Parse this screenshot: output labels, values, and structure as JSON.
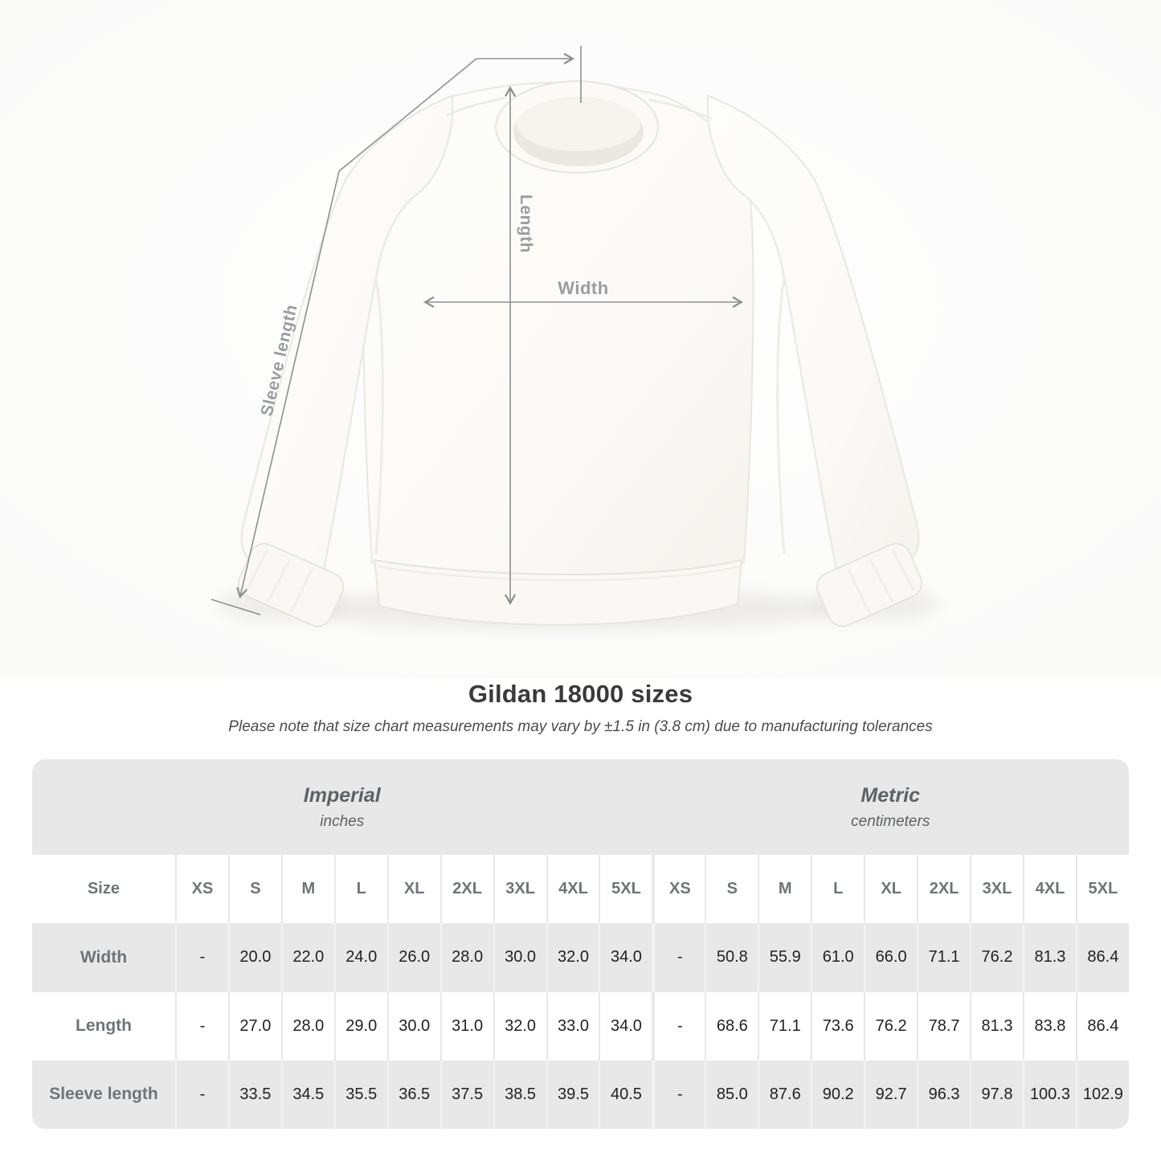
{
  "title": "Gildan 18000 sizes",
  "subtitle": "Please note that size chart measurements may vary by ±1.5 in (3.8 cm) due to manufacturing tolerances",
  "diagram": {
    "length_label": "Length",
    "width_label": "Width",
    "sleeve_label": "Sleeve length"
  },
  "colors": {
    "measure_line": "#8d9092",
    "measure_label": "#9a9da0",
    "table_band": "#e9e8e8",
    "header_text": "#6f7478",
    "value_text": "#222222",
    "title_text": "#3a3a3a"
  },
  "chart_data": {
    "type": "table",
    "title": "Gildan 18000 sizes",
    "note": "Please note that size chart measurements may vary by ±1.5 in (3.8 cm) due to manufacturing tolerances",
    "size_header": "Size",
    "sections": [
      {
        "name": "Imperial",
        "unit": "inches"
      },
      {
        "name": "Metric",
        "unit": "centimeters"
      }
    ],
    "sizes": [
      "XS",
      "S",
      "M",
      "L",
      "XL",
      "2XL",
      "3XL",
      "4XL",
      "5XL"
    ],
    "rows": [
      {
        "label": "Width",
        "imperial": [
          "-",
          "20.0",
          "22.0",
          "24.0",
          "26.0",
          "28.0",
          "30.0",
          "32.0",
          "34.0"
        ],
        "metric": [
          "-",
          "50.8",
          "55.9",
          "61.0",
          "66.0",
          "71.1",
          "76.2",
          "81.3",
          "86.4"
        ]
      },
      {
        "label": "Length",
        "imperial": [
          "-",
          "27.0",
          "28.0",
          "29.0",
          "30.0",
          "31.0",
          "32.0",
          "33.0",
          "34.0"
        ],
        "metric": [
          "-",
          "68.6",
          "71.1",
          "73.6",
          "76.2",
          "78.7",
          "81.3",
          "83.8",
          "86.4"
        ]
      },
      {
        "label": "Sleeve length",
        "imperial": [
          "-",
          "33.5",
          "34.5",
          "35.5",
          "36.5",
          "37.5",
          "38.5",
          "39.5",
          "40.5"
        ],
        "metric": [
          "-",
          "85.0",
          "87.6",
          "90.2",
          "92.7",
          "96.3",
          "97.8",
          "100.3",
          "102.9"
        ]
      }
    ]
  }
}
